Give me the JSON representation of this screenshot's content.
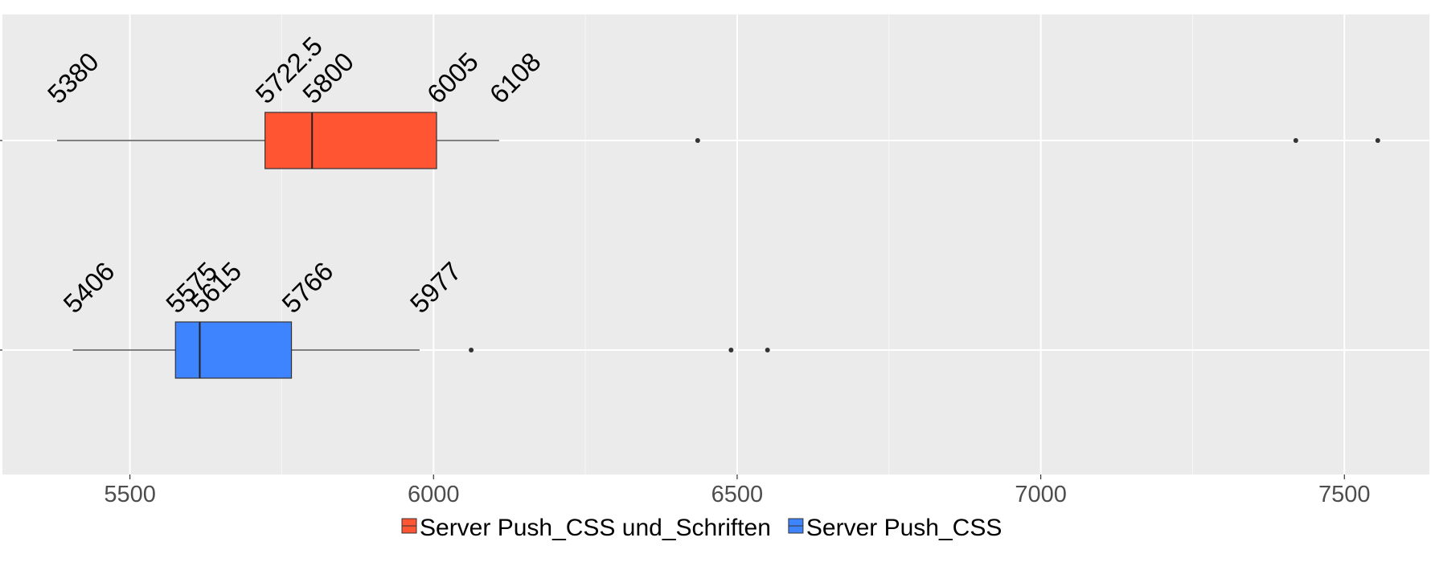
{
  "chart_data": {
    "type": "boxplot",
    "orientation": "horizontal",
    "xlim": [
      5290,
      7640
    ],
    "x_ticks": [
      5500,
      6000,
      6500,
      7000,
      7500
    ],
    "x_tick_labels": [
      "5500",
      "6000",
      "6500",
      "7000",
      "7500"
    ],
    "grid": true,
    "legend_position": "bottom",
    "series": [
      {
        "name": "Server Push_CSS und_Schriften",
        "color": "#FF5533",
        "whisker_low": 5380,
        "q1": 5722.5,
        "median": 5800,
        "q3": 6005,
        "whisker_high": 6108,
        "labels": [
          "5380",
          "5722.5",
          "5800",
          "6005",
          "6108"
        ],
        "outliers": [
          6435,
          7420,
          7555
        ]
      },
      {
        "name": "Server Push_CSS",
        "color": "#3F84FF",
        "whisker_low": 5406,
        "q1": 5575,
        "median": 5615,
        "q3": 5766,
        "whisker_high": 5977,
        "labels": [
          "5406",
          "5575",
          "5615",
          "5766",
          "5977"
        ],
        "outliers": [
          6062,
          6490,
          6550
        ]
      }
    ]
  }
}
